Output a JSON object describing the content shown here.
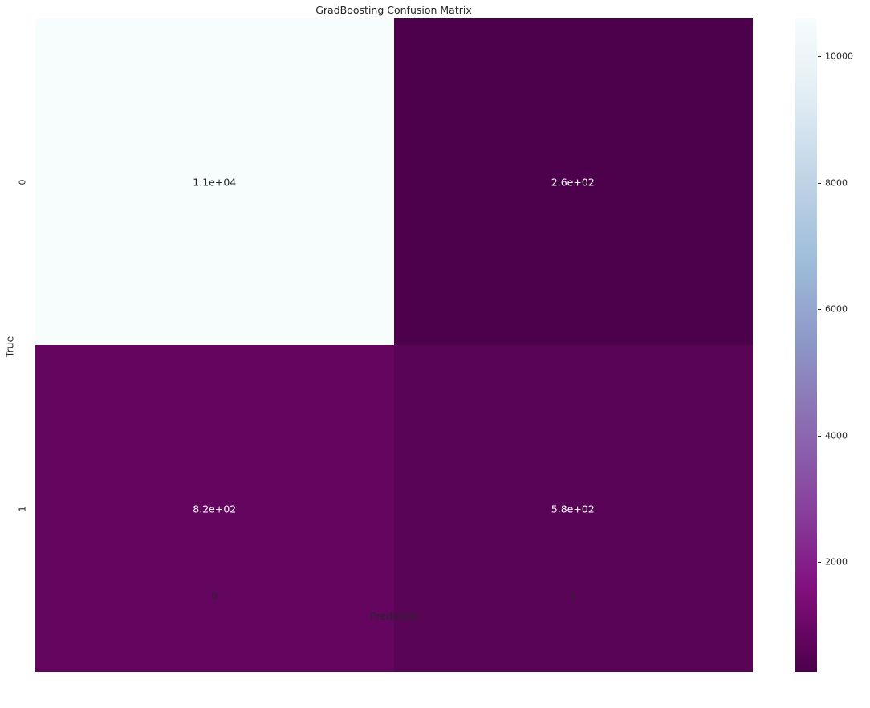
{
  "chart_data": {
    "type": "heatmap",
    "title": "GradBoosting Confusion Matrix",
    "xlabel": "Predicted",
    "ylabel": "True",
    "x_categories": [
      "0",
      "1"
    ],
    "y_categories": [
      "0",
      "1"
    ],
    "matrix": [
      [
        10600,
        260
      ],
      [
        820,
        580
      ]
    ],
    "annotations": [
      [
        "1.1e+04",
        "2.6e+02"
      ],
      [
        "8.2e+02",
        "5.8e+02"
      ]
    ],
    "colormap": "BuPu_r",
    "colorbar": {
      "vmin": 260,
      "vmax": 10600,
      "ticks": [
        2000,
        4000,
        6000,
        8000,
        10000
      ],
      "tick_labels": [
        "2000",
        "4000",
        "6000",
        "8000",
        "10000"
      ]
    },
    "colormap_stops": [
      "#4d004b",
      "#810f7c",
      "#88419d",
      "#8c6bb1",
      "#8c96c6",
      "#9ebcda",
      "#bfd3e6",
      "#e0ecf4",
      "#f7fcfd"
    ]
  }
}
